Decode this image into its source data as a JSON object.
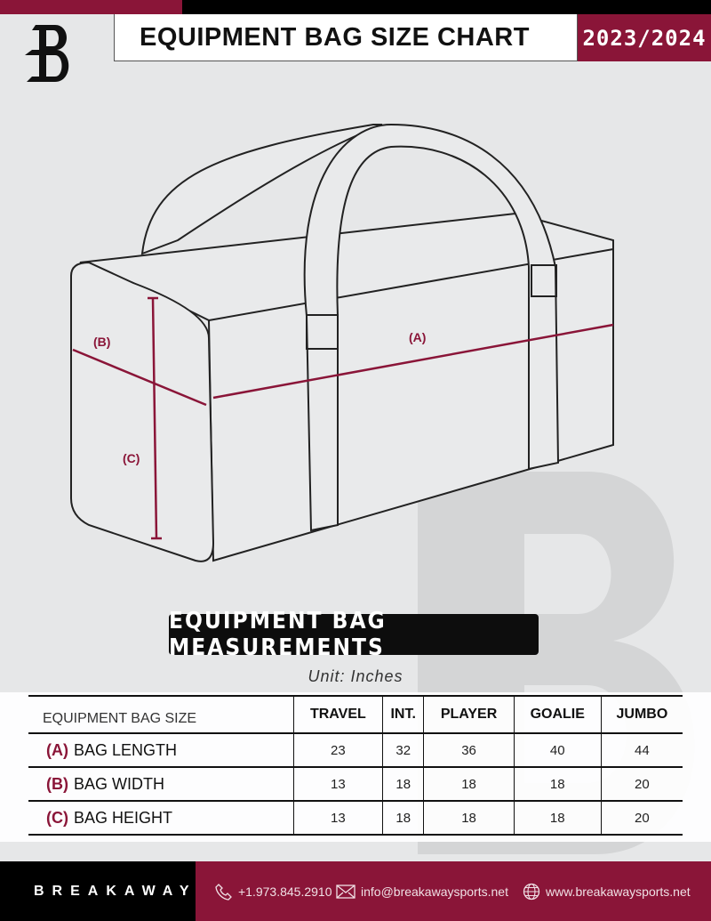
{
  "header": {
    "title": "EQUIPMENT BAG SIZE CHART",
    "season": "2023/2024"
  },
  "diagram": {
    "label_a": "(A)",
    "label_b": "(B)",
    "label_c": "(C)"
  },
  "section_title": "EQUIPMENT BAG MEASUREMENTS",
  "unit": "Unit: Inches",
  "table": {
    "corner": "EQUIPMENT BAG SIZE",
    "columns": [
      "TRAVEL",
      "INT.",
      "PLAYER",
      "GOALIE",
      "JUMBO"
    ],
    "rows": [
      {
        "key": "(A)",
        "label": "BAG LENGTH",
        "values": [
          "23",
          "32",
          "36",
          "40",
          "44"
        ]
      },
      {
        "key": "(B)",
        "label": "BAG WIDTH",
        "values": [
          "13",
          "18",
          "18",
          "18",
          "20"
        ]
      },
      {
        "key": "(C)",
        "label": "BAG HEIGHT",
        "values": [
          "13",
          "18",
          "18",
          "18",
          "20"
        ]
      }
    ]
  },
  "footer": {
    "brand": "BREAKAWAY",
    "phone": "+1.973.845.2910",
    "email": "info@breakawaysports.net",
    "website": "www.breakawaysports.net"
  },
  "colors": {
    "accent": "#8a1538",
    "dark": "#000000",
    "background": "#e6e7e8"
  }
}
